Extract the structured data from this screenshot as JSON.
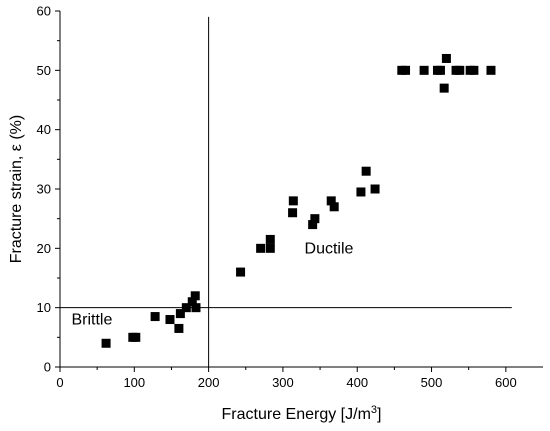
{
  "chart_data": {
    "type": "scatter",
    "title": "",
    "xlabel": "Fracture Energy [J/m³]",
    "ylabel": "Fracture strain, ε (%)",
    "xlim": [
      0,
      650
    ],
    "ylim": [
      0,
      60
    ],
    "xticks": [
      0,
      100,
      200,
      300,
      400,
      500,
      600
    ],
    "yticks": [
      0,
      10,
      20,
      30,
      40,
      50,
      60
    ],
    "grid": false,
    "legend": "none",
    "marker": "square",
    "marker_color": "#000000",
    "reference_lines": [
      {
        "orientation": "vertical",
        "value": 200,
        "from": 0,
        "to": 59
      },
      {
        "orientation": "horizontal",
        "value": 10,
        "from": 0,
        "to": 608
      }
    ],
    "annotations": [
      {
        "text": "Brittle",
        "x": 43,
        "y": 8
      },
      {
        "text": "Ductile",
        "x": 362,
        "y": 20
      }
    ],
    "points": [
      {
        "x": 62,
        "y": 4
      },
      {
        "x": 98,
        "y": 5
      },
      {
        "x": 102,
        "y": 5
      },
      {
        "x": 128,
        "y": 8.5
      },
      {
        "x": 148,
        "y": 8
      },
      {
        "x": 160,
        "y": 6.5
      },
      {
        "x": 162,
        "y": 9
      },
      {
        "x": 170,
        "y": 10
      },
      {
        "x": 178,
        "y": 11
      },
      {
        "x": 182,
        "y": 12
      },
      {
        "x": 183,
        "y": 10
      },
      {
        "x": 243,
        "y": 16
      },
      {
        "x": 270,
        "y": 20
      },
      {
        "x": 283,
        "y": 20
      },
      {
        "x": 283,
        "y": 21.5
      },
      {
        "x": 313,
        "y": 26
      },
      {
        "x": 314,
        "y": 28
      },
      {
        "x": 340,
        "y": 24
      },
      {
        "x": 343,
        "y": 25
      },
      {
        "x": 365,
        "y": 28
      },
      {
        "x": 369,
        "y": 27
      },
      {
        "x": 405,
        "y": 29.5
      },
      {
        "x": 412,
        "y": 33
      },
      {
        "x": 424,
        "y": 30
      },
      {
        "x": 460,
        "y": 50
      },
      {
        "x": 465,
        "y": 50
      },
      {
        "x": 490,
        "y": 50
      },
      {
        "x": 508,
        "y": 50
      },
      {
        "x": 512,
        "y": 50
      },
      {
        "x": 517,
        "y": 47
      },
      {
        "x": 520,
        "y": 52
      },
      {
        "x": 533,
        "y": 50
      },
      {
        "x": 538,
        "y": 50
      },
      {
        "x": 552,
        "y": 50
      },
      {
        "x": 557,
        "y": 50
      },
      {
        "x": 580,
        "y": 50
      }
    ]
  }
}
